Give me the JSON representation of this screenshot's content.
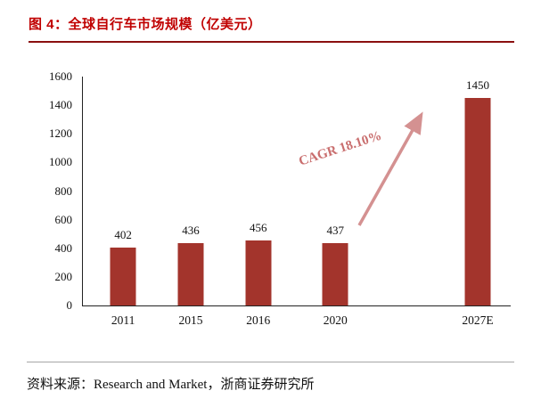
{
  "figure": {
    "title": "图 4：全球自行车市场规模（亿美元）",
    "source": "资料来源：Research and Market，浙商证券研究所"
  },
  "chart_data": {
    "type": "bar",
    "title": "全球自行车市场规模（亿美元）",
    "categories": [
      "2011",
      "2015",
      "2016",
      "2020",
      "2027E"
    ],
    "values": [
      402,
      436,
      456,
      437,
      1450
    ],
    "ylim": [
      0,
      1600
    ],
    "ytick_step": 200,
    "grid": false,
    "legend": "none",
    "bar_color": "#a3342c",
    "axis_color": "#222222",
    "annotation": {
      "text": "CAGR 18.10%",
      "color": "#c96e6e",
      "arrow_color": "#d49191"
    }
  },
  "colors": {
    "title": "#c00000",
    "title_rule": "#8b0f0f",
    "footer_rule": "#a6a6a6"
  }
}
